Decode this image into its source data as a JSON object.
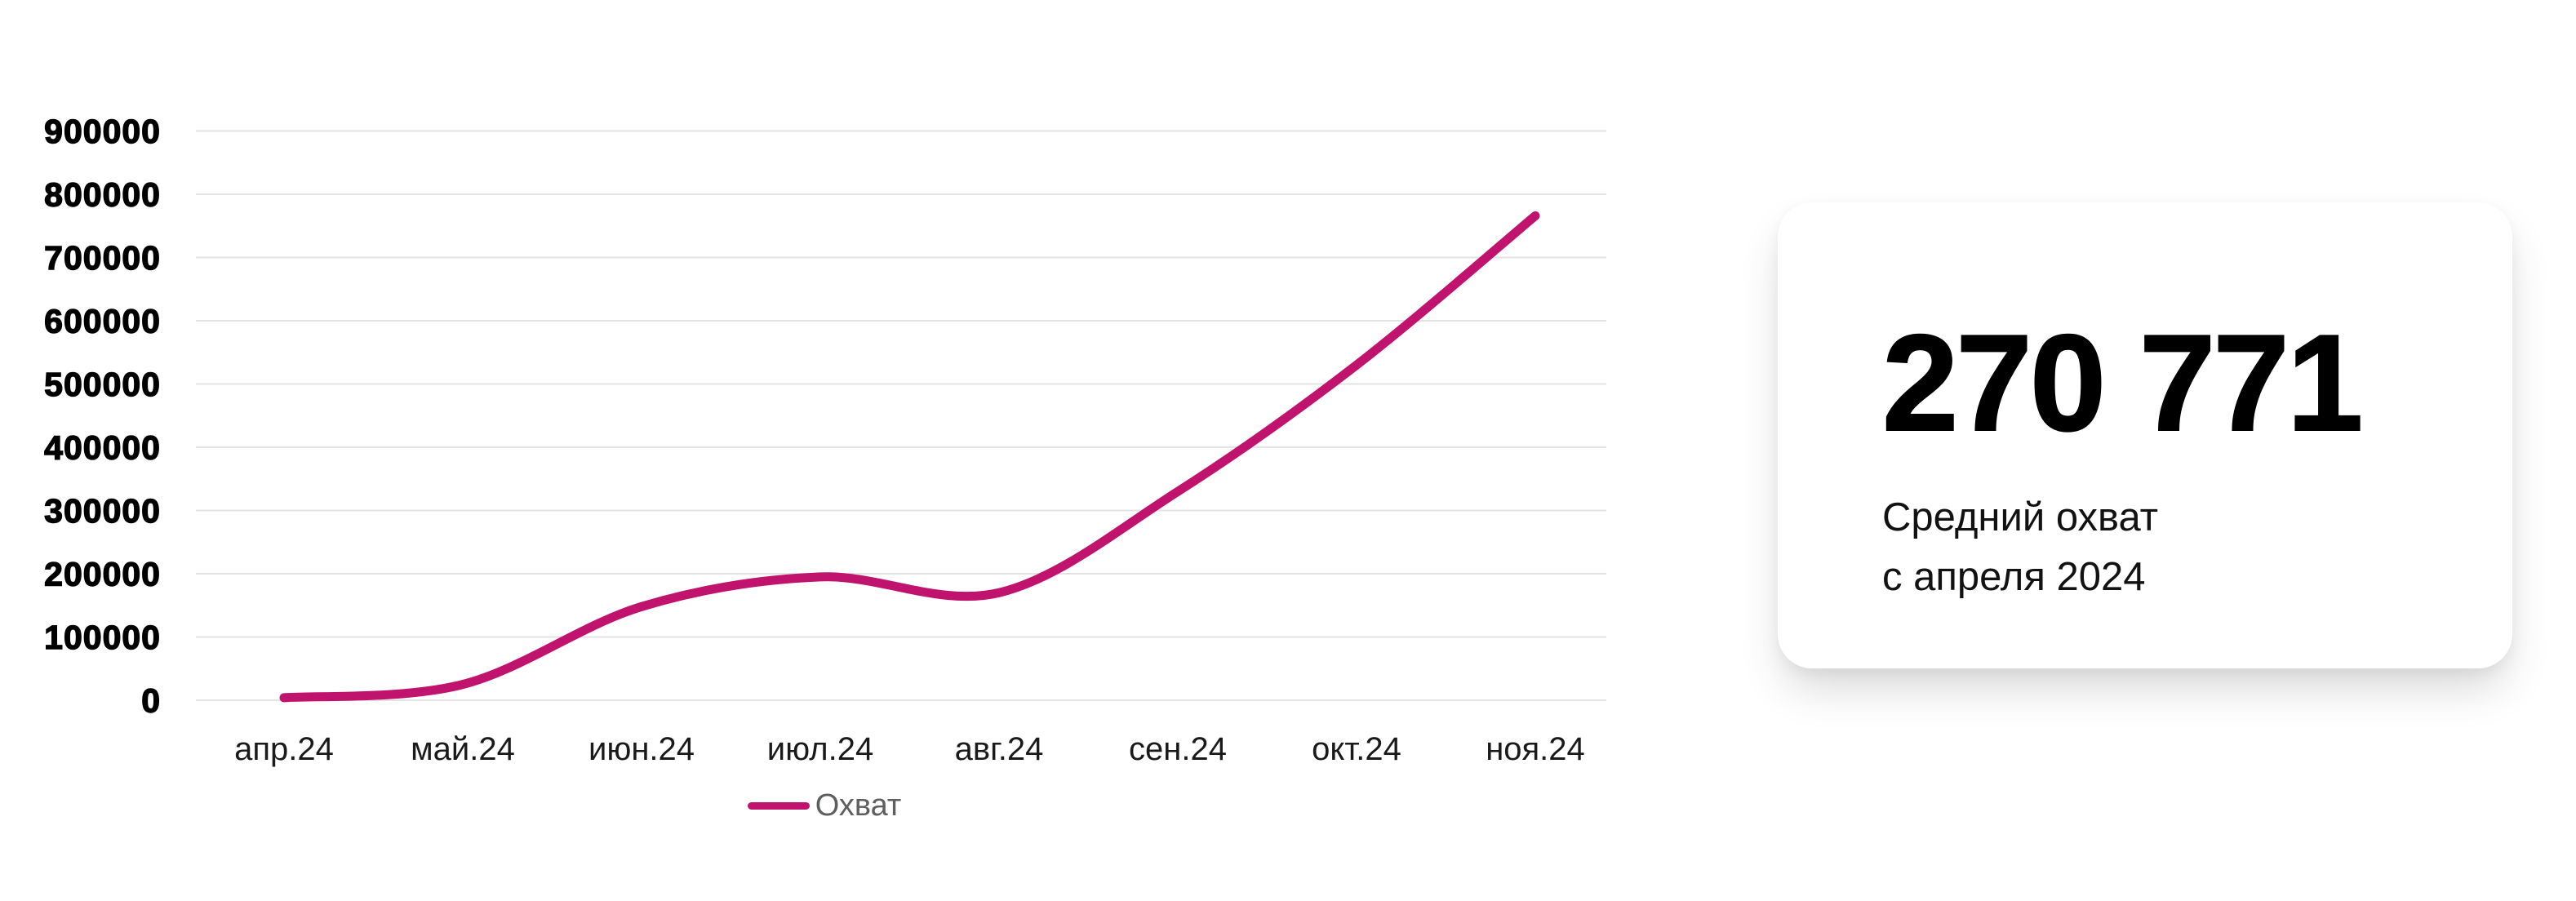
{
  "page": {
    "background": "#FFFFFF"
  },
  "chart_data": {
    "type": "line",
    "title": "",
    "x_categories": [
      "апр.24",
      "май.24",
      "июн.24",
      "июл.24",
      "авг.24",
      "сен.24",
      "окт.24",
      "ноя.24"
    ],
    "series": [
      {
        "name": "Охват",
        "color": "#C0136E",
        "values": [
          4000,
          25000,
          148000,
          195000,
          170000,
          330000,
          530000,
          766000
        ]
      }
    ],
    "ylim": [
      0,
      900000
    ],
    "y_tick_labels": [
      "0",
      "100000",
      "200000",
      "300000",
      "400000",
      "500000",
      "600000",
      "700000",
      "800000",
      "900000"
    ],
    "xlabel": "",
    "ylabel": "",
    "grid": true,
    "smooth": true,
    "legend_position": "bottom"
  },
  "legend": {
    "label": "Охват"
  },
  "stat_card": {
    "value": "270 771",
    "caption_line1": "Средний охват",
    "caption_line2": "с апреля 2024"
  },
  "colors": {
    "line": "#C0136E",
    "gridline": "#E3E3E3",
    "x_axis_text": "#1A1A1A",
    "y_axis_text": "#000000",
    "legend_text": "#5E5E5E",
    "card_bg": "#FFFFFF"
  }
}
